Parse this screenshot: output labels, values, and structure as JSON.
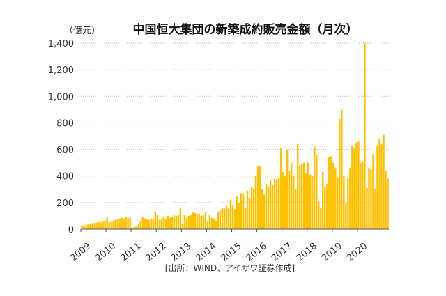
{
  "chart_data": {
    "type": "bar",
    "title": "中国恒大集団の新築成約販売金額（月次）",
    "unit_label": "（億元）",
    "source": "[出所：WIND、アイザワ証券作成]",
    "ylim": [
      0,
      1400
    ],
    "yticks": [
      "0",
      "200",
      "400",
      "600",
      "800",
      "1,000",
      "1,200",
      "1,400"
    ],
    "ytick_values": [
      0,
      200,
      400,
      600,
      800,
      1000,
      1200,
      1400
    ],
    "years": [
      "2009",
      "2010",
      "2011",
      "2012",
      "2013",
      "2014",
      "2015",
      "2016",
      "2017",
      "2018",
      "2019",
      "2020"
    ],
    "grid": true,
    "legend": "none",
    "bar_color": "#FFC000",
    "series": [
      {
        "values": [
          30,
          25,
          35,
          35,
          40,
          45,
          45,
          50,
          55,
          50,
          60,
          65,
          95,
          50,
          55,
          60,
          70,
          75,
          80,
          85,
          80,
          90,
          85,
          85,
          5,
          15,
          20,
          40,
          60,
          95,
          80,
          75,
          70,
          80,
          80,
          130,
          110,
          70,
          75,
          95,
          80,
          100,
          85,
          90,
          105,
          100,
          105,
          160,
          40,
          105,
          85,
          100,
          110,
          130,
          120,
          115,
          115,
          100,
          105,
          130,
          55,
          110,
          85,
          80,
          60,
          130,
          140,
          160,
          155,
          175,
          155,
          220,
          185,
          150,
          245,
          200,
          270,
          265,
          160,
          290,
          230,
          320,
          300,
          400,
          470,
          475,
          300,
          260,
          340,
          315,
          370,
          330,
          380,
          375,
          385,
          610,
          430,
          400,
          600,
          440,
          500,
          400,
          300,
          640,
          480,
          490,
          500,
          420,
          500,
          410,
          400,
          620,
          560,
          205,
          160,
          430,
          320,
          340,
          540,
          550,
          500,
          460,
          390,
          830,
          900,
          400,
          200,
          380,
          460,
          630,
          610,
          650,
          660,
          500,
          510,
          1400,
          310,
          460,
          450,
          565,
          300,
          630,
          680,
          640,
          710,
          440,
          380
        ]
      }
    ]
  }
}
